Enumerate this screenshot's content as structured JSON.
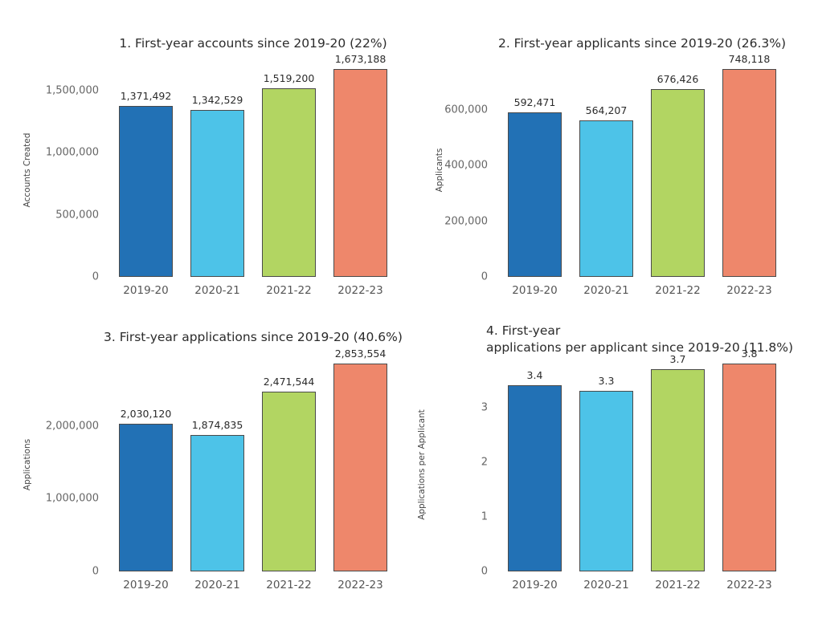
{
  "figure": {
    "background": "#ffffff",
    "bar_edge_color": "#4a4a4a",
    "bar_colors": [
      "#2271b5",
      "#4dc3e8",
      "#b2d562",
      "#ee876b"
    ],
    "categories": [
      "2019-20",
      "2020-21",
      "2021-22",
      "2022-23"
    ]
  },
  "chart_data": [
    {
      "type": "bar",
      "title": "1. First-year accounts since 2019-20 (22%)",
      "xlabel": "",
      "ylabel": "Accounts Created",
      "categories": [
        "2019-20",
        "2020-21",
        "2021-22",
        "2022-23"
      ],
      "values": [
        1371492,
        1342529,
        1519200,
        1673188
      ],
      "value_labels": [
        "1,371,492",
        "1,342,529",
        "1,519,200",
        "1,673,188"
      ],
      "bar_colors": [
        "#2271b5",
        "#4dc3e8",
        "#b2d562",
        "#ee876b"
      ],
      "yticks": [
        {
          "value": 0,
          "label": "0"
        },
        {
          "value": 500000,
          "label": "500,000"
        },
        {
          "value": 1000000,
          "label": "1,000,000"
        },
        {
          "value": 1500000,
          "label": "1,500,000"
        }
      ],
      "ylim": [
        0,
        1710000
      ],
      "grid": false,
      "legend": null
    },
    {
      "type": "bar",
      "title": "2. First-year applicants since 2019-20 (26.3%)",
      "xlabel": "",
      "ylabel": "Applicants",
      "categories": [
        "2019-20",
        "2020-21",
        "2021-22",
        "2022-23"
      ],
      "values": [
        592471,
        564207,
        676426,
        748118
      ],
      "value_labels": [
        "592,471",
        "564,207",
        "676,426",
        "748,118"
      ],
      "bar_colors": [
        "#2271b5",
        "#4dc3e8",
        "#b2d562",
        "#ee876b"
      ],
      "yticks": [
        {
          "value": 0,
          "label": "0"
        },
        {
          "value": 200000,
          "label": "200,000"
        },
        {
          "value": 400000,
          "label": "400,000"
        },
        {
          "value": 600000,
          "label": "600,000"
        }
      ],
      "ylim": [
        0,
        765000
      ],
      "grid": false,
      "legend": null
    },
    {
      "type": "bar",
      "title": "3. First-year applications since 2019-20 (40.6%)",
      "xlabel": "",
      "ylabel": "Applications",
      "categories": [
        "2019-20",
        "2020-21",
        "2021-22",
        "2022-23"
      ],
      "values": [
        2030120,
        1874835,
        2471544,
        2853554
      ],
      "value_labels": [
        "2,030,120",
        "1,874,835",
        "2,471,544",
        "2,853,554"
      ],
      "bar_colors": [
        "#2271b5",
        "#4dc3e8",
        "#b2d562",
        "#ee876b"
      ],
      "yticks": [
        {
          "value": 0,
          "label": "0"
        },
        {
          "value": 1000000,
          "label": "1,000,000"
        },
        {
          "value": 2000000,
          "label": "2,000,000"
        }
      ],
      "ylim": [
        0,
        2920000
      ],
      "grid": false,
      "legend": null
    },
    {
      "type": "bar",
      "title": "4. First-year\napplications per applicant since 2019-20 (11.8%)",
      "xlabel": "",
      "ylabel": "Applications per Applicant",
      "categories": [
        "2019-20",
        "2020-21",
        "2021-22",
        "2022-23"
      ],
      "values": [
        3.4,
        3.3,
        3.7,
        3.8
      ],
      "value_labels": [
        "3.4",
        "3.3",
        "3.7",
        "3.8"
      ],
      "bar_colors": [
        "#2271b5",
        "#4dc3e8",
        "#b2d562",
        "#ee876b"
      ],
      "yticks": [
        {
          "value": 0,
          "label": "0"
        },
        {
          "value": 1,
          "label": "1"
        },
        {
          "value": 2,
          "label": "2"
        },
        {
          "value": 3,
          "label": "3"
        }
      ],
      "ylim": [
        0,
        3.89
      ],
      "grid": false,
      "legend": null
    }
  ]
}
